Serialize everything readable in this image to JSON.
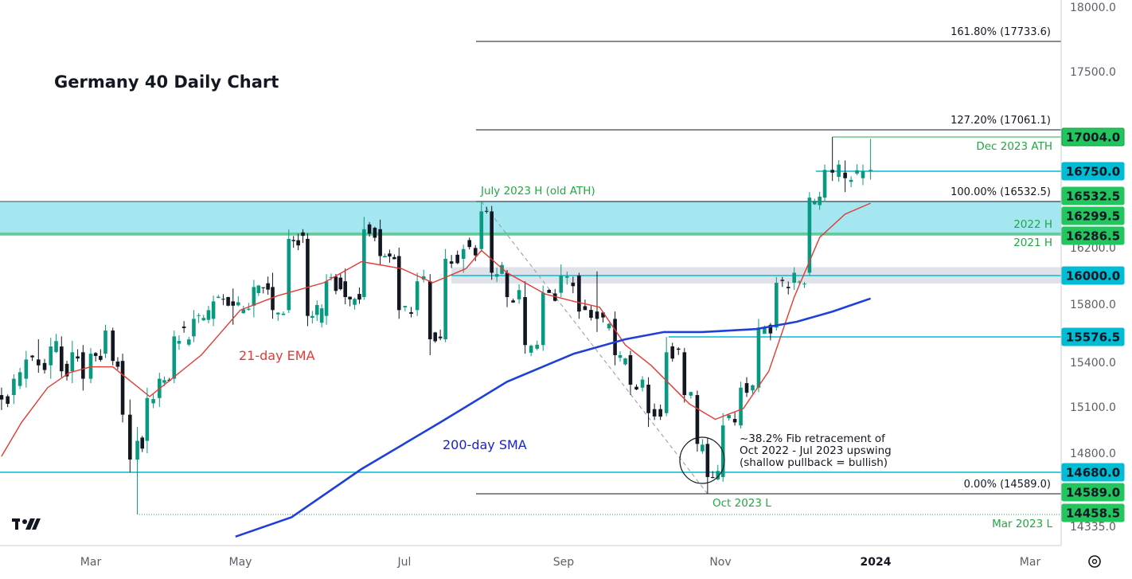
{
  "chart_data": {
    "type": "candlestick",
    "title": "Germany 40 Daily Chart",
    "y_axis": {
      "min": 14230,
      "max": 18050,
      "ticks": [
        "18000.0",
        "17500.0",
        "16200.0",
        "15800.0",
        "15400.0",
        "15100.0",
        "14800.0",
        "14335.0"
      ],
      "tick_values": [
        18000,
        17500,
        16200,
        15800,
        15400,
        15100,
        14800,
        14335
      ]
    },
    "x_axis": {
      "ticks": [
        "Mar",
        "May",
        "Jul",
        "Sep",
        "Nov",
        "2024",
        "Mar"
      ],
      "tick_positions": [
        "2023-03-01",
        "2023-05-01",
        "2023-07-01",
        "2023-09-01",
        "2023-11-01",
        "2024-01-01",
        "2024-03-01"
      ],
      "bold_tick": "2024"
    },
    "price_tags": [
      {
        "label": "17004.0",
        "value": 17004.0,
        "style": "green-outline"
      },
      {
        "label": "16750.0",
        "value": 16750.0,
        "style": "cyan"
      },
      {
        "label": "16532.5",
        "value": 16532.5,
        "style": "green"
      },
      {
        "label": "16299.5",
        "value": 16299.5,
        "style": "green"
      },
      {
        "label": "16286.5",
        "value": 16286.5,
        "style": "green"
      },
      {
        "label": "16000.0",
        "value": 16000.0,
        "style": "cyan"
      },
      {
        "label": "15576.5",
        "value": 15576.5,
        "style": "cyan"
      },
      {
        "label": "14680.0",
        "value": 14680.0,
        "style": "cyan"
      },
      {
        "label": "14589.0",
        "value": 14589.0,
        "style": "green"
      },
      {
        "label": "14458.5",
        "value": 14458.5,
        "style": "green"
      }
    ],
    "fib_levels": [
      {
        "label": "161.80% (17733.6)",
        "value": 17733.6
      },
      {
        "label": "127.20% (17061.1)",
        "value": 17061.1
      },
      {
        "label": "100.00% (16532.5)",
        "value": 16532.5
      },
      {
        "label": "0.00% (14589.0)",
        "value": 14589.0
      }
    ],
    "level_labels": [
      {
        "label": "July 2023 H (old ATH)",
        "value": 16532.5
      },
      {
        "label": "Dec 2023 ATH",
        "value": 17004.0
      },
      {
        "label": "2022 H",
        "value": 16299.5
      },
      {
        "label": "2021 H",
        "value": 16286.5
      },
      {
        "label": "Oct 2023 L",
        "value": 14589.0
      },
      {
        "label": "Mar 2023 L",
        "value": 14458.5
      }
    ],
    "indicator_labels": {
      "ema": "21-day EMA",
      "sma": "200-day SMA"
    },
    "annotation": [
      "~38.2% Fib retracement of",
      "Oct 2022 - Jul 2023 upswing",
      "(shallow pullback = bullish)"
    ],
    "colors": {
      "up": "#089981",
      "down": "#131722",
      "ema": "#e53935",
      "sma": "#1e40d8",
      "zone": "#7fdde9",
      "grey_zone": "#d7dbe3",
      "cyan_line": "#00bcd4",
      "green": "#22ab4a"
    },
    "sma_points": [
      {
        "date": "2023-04-29",
        "value": 14230
      },
      {
        "date": "2023-05-20",
        "value": 14430
      },
      {
        "date": "2023-06-15",
        "value": 14700
      },
      {
        "date": "2023-07-15",
        "value": 15000
      },
      {
        "date": "2023-08-10",
        "value": 15270
      },
      {
        "date": "2023-09-05",
        "value": 15460
      },
      {
        "date": "2023-09-25",
        "value": 15560
      },
      {
        "date": "2023-10-10",
        "value": 15610
      },
      {
        "date": "2023-10-25",
        "value": 15610
      },
      {
        "date": "2023-11-15",
        "value": 15630
      },
      {
        "date": "2023-12-01",
        "value": 15680
      },
      {
        "date": "2023-12-15",
        "value": 15750
      },
      {
        "date": "2023-12-30",
        "value": 15840
      }
    ],
    "ema_points": [
      {
        "date": "2023-01-02",
        "value": 14780
      },
      {
        "date": "2023-01-15",
        "value": 15000
      },
      {
        "date": "2023-02-01",
        "value": 15230
      },
      {
        "date": "2023-02-15",
        "value": 15330
      },
      {
        "date": "2023-03-01",
        "value": 15370
      },
      {
        "date": "2023-03-10",
        "value": 15370
      },
      {
        "date": "2023-03-25",
        "value": 15170
      },
      {
        "date": "2023-04-15",
        "value": 15450
      },
      {
        "date": "2023-05-01",
        "value": 15760
      },
      {
        "date": "2023-05-15",
        "value": 15860
      },
      {
        "date": "2023-06-01",
        "value": 15950
      },
      {
        "date": "2023-06-15",
        "value": 16100
      },
      {
        "date": "2023-06-30",
        "value": 16050
      },
      {
        "date": "2023-07-12",
        "value": 15950
      },
      {
        "date": "2023-07-25",
        "value": 16050
      },
      {
        "date": "2023-07-31",
        "value": 16180
      },
      {
        "date": "2023-08-10",
        "value": 16020
      },
      {
        "date": "2023-08-25",
        "value": 15870
      },
      {
        "date": "2023-09-05",
        "value": 15820
      },
      {
        "date": "2023-09-15",
        "value": 15780
      },
      {
        "date": "2023-09-25",
        "value": 15520
      },
      {
        "date": "2023-10-05",
        "value": 15380
      },
      {
        "date": "2023-10-20",
        "value": 15120
      },
      {
        "date": "2023-10-30",
        "value": 15020
      },
      {
        "date": "2023-11-10",
        "value": 15090
      },
      {
        "date": "2023-11-20",
        "value": 15340
      },
      {
        "date": "2023-11-30",
        "value": 15850
      },
      {
        "date": "2023-12-10",
        "value": 16270
      },
      {
        "date": "2023-12-20",
        "value": 16440
      },
      {
        "date": "2023-12-30",
        "value": 16520
      }
    ],
    "ohlc": [
      {
        "date": "2023-01-02",
        "o": 15180,
        "h": 15230,
        "l": 15080,
        "c": 15150
      },
      {
        "date": "2023-01-10",
        "o": 15180,
        "h": 15320,
        "l": 15120,
        "c": 15290
      },
      {
        "date": "2023-01-18",
        "o": 15290,
        "h": 15480,
        "l": 15230,
        "c": 15420
      },
      {
        "date": "2023-01-26",
        "o": 15420,
        "h": 15560,
        "l": 15330,
        "c": 15380
      },
      {
        "date": "2023-02-03",
        "o": 15380,
        "h": 15570,
        "l": 15290,
        "c": 15510
      },
      {
        "date": "2023-02-10",
        "o": 15510,
        "h": 15580,
        "l": 15300,
        "c": 15340
      },
      {
        "date": "2023-02-17",
        "o": 15340,
        "h": 15550,
        "l": 15260,
        "c": 15470
      },
      {
        "date": "2023-02-24",
        "o": 15470,
        "h": 15520,
        "l": 15210,
        "c": 15290
      },
      {
        "date": "2023-03-01",
        "o": 15290,
        "h": 15500,
        "l": 15260,
        "c": 15460
      },
      {
        "date": "2023-03-07",
        "o": 15460,
        "h": 15660,
        "l": 15430,
        "c": 15620
      },
      {
        "date": "2023-03-10",
        "o": 15620,
        "h": 15640,
        "l": 15380,
        "c": 15410
      },
      {
        "date": "2023-03-14",
        "o": 15410,
        "h": 15460,
        "l": 15000,
        "c": 15050
      },
      {
        "date": "2023-03-17",
        "o": 15050,
        "h": 15150,
        "l": 14680,
        "c": 14760
      },
      {
        "date": "2023-03-20",
        "o": 14760,
        "h": 14970,
        "l": 14458,
        "c": 14880
      },
      {
        "date": "2023-03-24",
        "o": 14880,
        "h": 15230,
        "l": 14800,
        "c": 15160
      },
      {
        "date": "2023-03-29",
        "o": 15160,
        "h": 15330,
        "l": 15100,
        "c": 15290
      },
      {
        "date": "2023-04-04",
        "o": 15290,
        "h": 15620,
        "l": 15260,
        "c": 15580
      },
      {
        "date": "2023-04-12",
        "o": 15580,
        "h": 15760,
        "l": 15540,
        "c": 15700
      },
      {
        "date": "2023-04-20",
        "o": 15700,
        "h": 15860,
        "l": 15650,
        "c": 15820
      },
      {
        "date": "2023-04-28",
        "o": 15820,
        "h": 15910,
        "l": 15660,
        "c": 15790
      },
      {
        "date": "2023-05-06",
        "o": 15790,
        "h": 15970,
        "l": 15710,
        "c": 15920
      },
      {
        "date": "2023-05-13",
        "o": 15920,
        "h": 16020,
        "l": 15700,
        "c": 15760
      },
      {
        "date": "2023-05-19",
        "o": 15760,
        "h": 16330,
        "l": 15740,
        "c": 16260
      },
      {
        "date": "2023-05-26",
        "o": 16260,
        "h": 16300,
        "l": 15650,
        "c": 15720
      },
      {
        "date": "2023-06-02",
        "o": 15720,
        "h": 16010,
        "l": 15660,
        "c": 15960
      },
      {
        "date": "2023-06-09",
        "o": 15960,
        "h": 16050,
        "l": 15800,
        "c": 15850
      },
      {
        "date": "2023-06-16",
        "o": 15850,
        "h": 16420,
        "l": 15830,
        "c": 16330
      },
      {
        "date": "2023-06-22",
        "o": 16330,
        "h": 16400,
        "l": 16080,
        "c": 16140
      },
      {
        "date": "2023-06-29",
        "o": 16140,
        "h": 16200,
        "l": 15700,
        "c": 15760
      },
      {
        "date": "2023-07-06",
        "o": 15760,
        "h": 16020,
        "l": 15720,
        "c": 15960
      },
      {
        "date": "2023-07-11",
        "o": 15960,
        "h": 16010,
        "l": 15450,
        "c": 15560
      },
      {
        "date": "2023-07-17",
        "o": 15560,
        "h": 16190,
        "l": 15540,
        "c": 16120
      },
      {
        "date": "2023-07-24",
        "o": 16120,
        "h": 16220,
        "l": 16020,
        "c": 16190
      },
      {
        "date": "2023-07-31",
        "o": 16190,
        "h": 16532,
        "l": 16170,
        "c": 16460
      },
      {
        "date": "2023-08-04",
        "o": 16460,
        "h": 16500,
        "l": 15970,
        "c": 16020
      },
      {
        "date": "2023-08-10",
        "o": 16020,
        "h": 16040,
        "l": 15780,
        "c": 15850
      },
      {
        "date": "2023-08-17",
        "o": 15850,
        "h": 15960,
        "l": 15460,
        "c": 15520
      },
      {
        "date": "2023-08-24",
        "o": 15520,
        "h": 15930,
        "l": 15480,
        "c": 15880
      },
      {
        "date": "2023-08-31",
        "o": 15880,
        "h": 16080,
        "l": 15850,
        "c": 16000
      },
      {
        "date": "2023-09-07",
        "o": 16000,
        "h": 16020,
        "l": 15700,
        "c": 15750
      },
      {
        "date": "2023-09-14",
        "o": 15750,
        "h": 16030,
        "l": 15610,
        "c": 15700
      },
      {
        "date": "2023-09-21",
        "o": 15700,
        "h": 15750,
        "l": 15380,
        "c": 15450
      },
      {
        "date": "2023-09-27",
        "o": 15450,
        "h": 15480,
        "l": 15180,
        "c": 15250
      },
      {
        "date": "2023-10-04",
        "o": 15250,
        "h": 15300,
        "l": 14970,
        "c": 15060
      },
      {
        "date": "2023-10-11",
        "o": 15060,
        "h": 15576,
        "l": 15040,
        "c": 15470
      },
      {
        "date": "2023-10-18",
        "o": 15470,
        "h": 15500,
        "l": 15130,
        "c": 15180
      },
      {
        "date": "2023-10-23",
        "o": 15180,
        "h": 15210,
        "l": 14810,
        "c": 14860
      },
      {
        "date": "2023-10-27",
        "o": 14860,
        "h": 14900,
        "l": 14589,
        "c": 14660
      },
      {
        "date": "2023-11-02",
        "o": 14660,
        "h": 15060,
        "l": 14640,
        "c": 14980
      },
      {
        "date": "2023-11-09",
        "o": 14980,
        "h": 15270,
        "l": 14960,
        "c": 15230
      },
      {
        "date": "2023-11-16",
        "o": 15230,
        "h": 15700,
        "l": 15200,
        "c": 15640
      },
      {
        "date": "2023-11-23",
        "o": 15640,
        "h": 15990,
        "l": 15620,
        "c": 15950
      },
      {
        "date": "2023-11-30",
        "o": 15950,
        "h": 16060,
        "l": 15900,
        "c": 16020
      },
      {
        "date": "2023-12-06",
        "o": 16020,
        "h": 16600,
        "l": 16000,
        "c": 16560
      },
      {
        "date": "2023-12-12",
        "o": 16560,
        "h": 16800,
        "l": 16530,
        "c": 16760
      },
      {
        "date": "2023-12-15",
        "o": 16760,
        "h": 17004,
        "l": 16680,
        "c": 16740
      },
      {
        "date": "2023-12-20",
        "o": 16740,
        "h": 16830,
        "l": 16600,
        "c": 16700
      },
      {
        "date": "2023-12-27",
        "o": 16700,
        "h": 16800,
        "l": 16650,
        "c": 16750
      },
      {
        "date": "2023-12-30",
        "o": 16750,
        "h": 16990,
        "l": 16690,
        "c": 16760
      }
    ]
  }
}
